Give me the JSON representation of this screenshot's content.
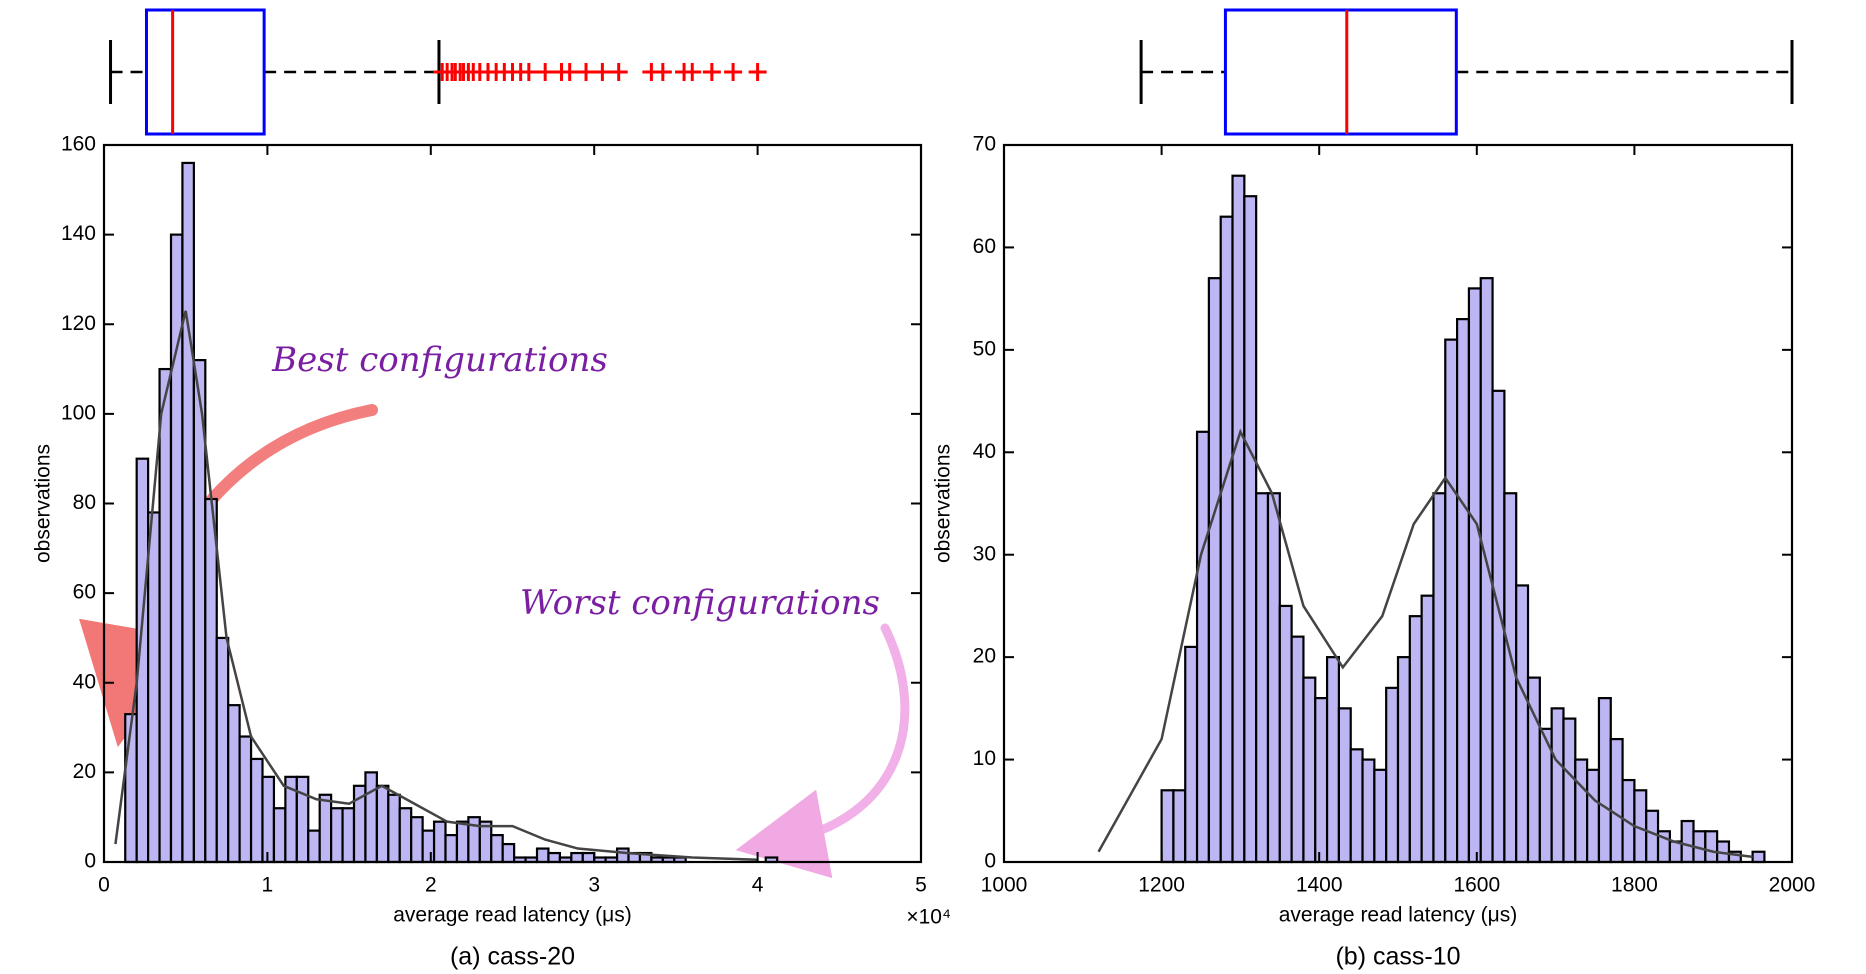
{
  "chart_data": [
    {
      "type": "histogram",
      "caption": "(a) cass-20",
      "xlabel": "average read latency (μs)",
      "ylabel": "observations",
      "x_multiplier": "×10⁴",
      "xlim": [
        0,
        5
      ],
      "xticks": [
        0,
        1,
        2,
        3,
        4,
        5
      ],
      "ylim": [
        0,
        160
      ],
      "yticks": [
        0,
        20,
        40,
        60,
        80,
        100,
        120,
        140,
        160
      ],
      "color": "#bcb6f2",
      "edge_color": "#000000",
      "bins": [
        0.13,
        0.2,
        0.27,
        0.34,
        0.41,
        0.48,
        0.55,
        0.62,
        0.69,
        0.76,
        0.83,
        0.9,
        0.97,
        1.04,
        1.11,
        1.18,
        1.25,
        1.32,
        1.39,
        1.46,
        1.53,
        1.6,
        1.67,
        1.74,
        1.81,
        1.88,
        1.95,
        2.02,
        2.09,
        2.16,
        2.23,
        2.3,
        2.37,
        2.44,
        2.51,
        2.58,
        2.65,
        2.72,
        2.79,
        2.86,
        2.93,
        3.0,
        3.07,
        3.14,
        3.21,
        3.28,
        3.35,
        3.42,
        3.49,
        3.56,
        3.63,
        3.7,
        3.77,
        3.84,
        3.91,
        3.98,
        4.05,
        4.12
      ],
      "values": [
        33,
        90,
        78,
        110,
        140,
        156,
        112,
        81,
        50,
        35,
        28,
        23,
        19,
        12,
        19,
        19,
        7,
        15,
        12,
        12,
        17,
        20,
        17,
        15,
        12,
        10,
        7,
        9,
        6,
        9,
        10,
        9,
        6,
        4,
        1,
        1,
        3,
        2,
        1,
        2,
        2,
        1,
        1,
        3,
        2,
        2,
        1,
        1,
        1,
        0,
        0,
        0,
        0,
        0,
        0,
        0,
        1
      ],
      "curve": {
        "color": "#444444",
        "x": [
          0.07,
          0.2,
          0.35,
          0.5,
          0.6,
          0.75,
          0.9,
          1.1,
          1.3,
          1.5,
          1.7,
          1.9,
          2.1,
          2.3,
          2.5,
          2.7,
          2.9,
          3.2,
          3.6,
          4.0
        ],
        "y": [
          4,
          40,
          100,
          123,
          100,
          50,
          28,
          17,
          14,
          13,
          17,
          13,
          9,
          8,
          8,
          5,
          3,
          2,
          1,
          0.5
        ]
      },
      "boxplot": {
        "box_color": "#0000ff",
        "median_color": "#ff0000",
        "whisker_low": 0.04,
        "q1": 0.26,
        "median": 0.42,
        "q3": 0.98,
        "whisker_high": 2.05,
        "outliers": [
          2.07,
          2.1,
          2.13,
          2.15,
          2.18,
          2.2,
          2.23,
          2.26,
          2.3,
          2.35,
          2.4,
          2.45,
          2.5,
          2.55,
          2.6,
          2.7,
          2.8,
          2.85,
          2.95,
          3.05,
          3.15,
          3.35,
          3.42,
          3.55,
          3.6,
          3.72,
          3.85,
          4.0
        ]
      },
      "annotations": [
        {
          "text": "Best configurations",
          "color": "#7a1fa2"
        },
        {
          "text": "Worst configurations",
          "color": "#7a1fa2"
        }
      ]
    },
    {
      "type": "histogram",
      "caption": "(b) cass-10",
      "xlabel": "average read latency (μs)",
      "ylabel": "observations",
      "xlim": [
        1000,
        2000
      ],
      "xticks": [
        1000,
        1200,
        1400,
        1600,
        1800,
        2000
      ],
      "ylim": [
        0,
        70
      ],
      "yticks": [
        0,
        10,
        20,
        30,
        40,
        50,
        60,
        70
      ],
      "color": "#bcb6f2",
      "edge_color": "#000000",
      "bins": [
        1200,
        1215,
        1230,
        1245,
        1260,
        1275,
        1290,
        1305,
        1320,
        1335,
        1350,
        1365,
        1380,
        1395,
        1410,
        1425,
        1440,
        1455,
        1470,
        1485,
        1500,
        1515,
        1530,
        1545,
        1560,
        1575,
        1590,
        1605,
        1620,
        1635,
        1650,
        1665,
        1680,
        1695,
        1710,
        1725,
        1740,
        1755,
        1770,
        1785,
        1800,
        1815,
        1830,
        1845,
        1860,
        1875,
        1890,
        1905,
        1920,
        1935,
        1950,
        1965
      ],
      "values": [
        7,
        7,
        21,
        42,
        57,
        63,
        67,
        65,
        36,
        36,
        25,
        22,
        18,
        16,
        20,
        15,
        11,
        10,
        9,
        17,
        20,
        24,
        26,
        36,
        51,
        53,
        56,
        57,
        46,
        36,
        27,
        18,
        13,
        15,
        14,
        10,
        9,
        16,
        12,
        8,
        7,
        5,
        3,
        2,
        4,
        3,
        3,
        2,
        1,
        0,
        1
      ],
      "curve": {
        "color": "#444444",
        "x": [
          1120,
          1200,
          1250,
          1300,
          1340,
          1380,
          1430,
          1480,
          1520,
          1560,
          1600,
          1650,
          1700,
          1750,
          1800,
          1850,
          1900,
          1950
        ],
        "y": [
          1,
          12,
          30,
          42,
          36,
          25,
          19,
          24,
          33,
          37.5,
          33,
          18,
          10,
          6,
          3.5,
          2,
          1,
          0.5
        ]
      },
      "boxplot": {
        "box_color": "#0000ff",
        "median_color": "#ff0000",
        "whisker_low": 1174,
        "q1": 1281,
        "median": 1435,
        "q3": 1574,
        "whisker_high": 2000,
        "outliers": []
      }
    }
  ]
}
